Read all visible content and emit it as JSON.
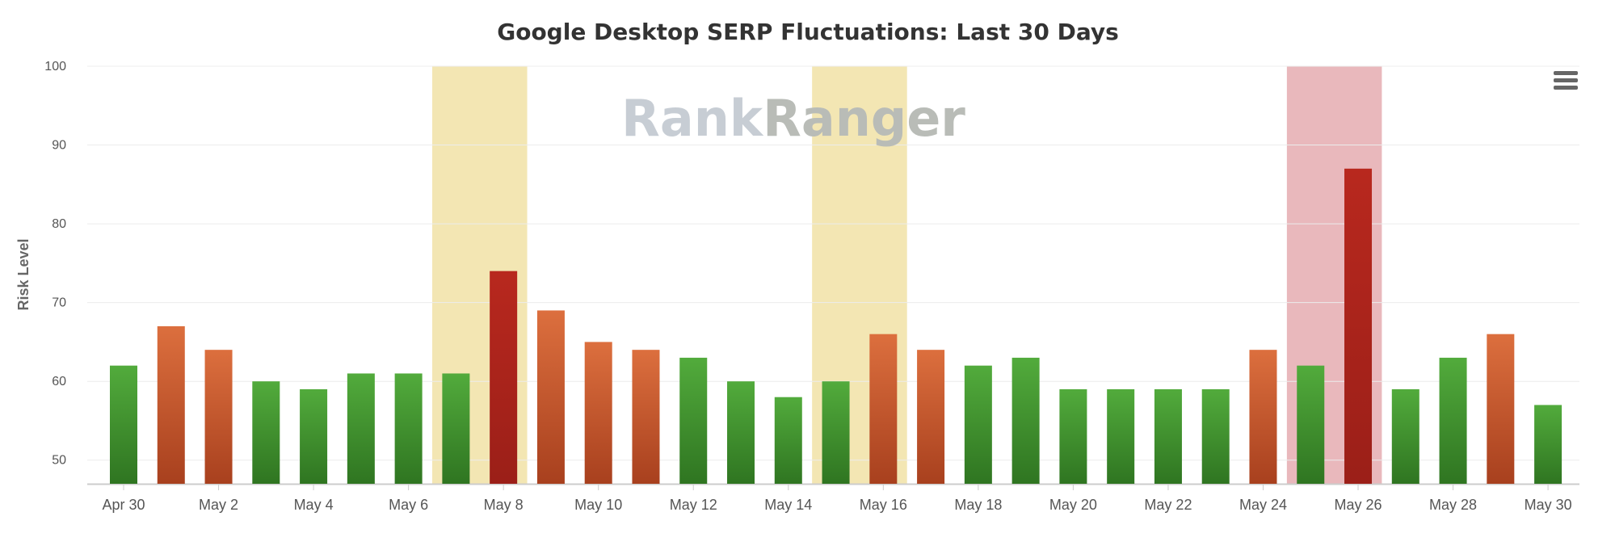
{
  "chart_data": {
    "type": "bar",
    "title": "Google Desktop SERP Fluctuations: Last 30 Days",
    "ylabel": "Risk Level",
    "xlabel": "",
    "ylim": [
      47,
      100
    ],
    "yticks": [
      50,
      60,
      70,
      80,
      90,
      100
    ],
    "grid": true,
    "legend": "none",
    "watermark": {
      "part1": "Rank",
      "part2": "Ranger"
    },
    "categories": [
      "Apr 30",
      "May 1",
      "May 2",
      "May 3",
      "May 4",
      "May 5",
      "May 6",
      "May 7",
      "May 8",
      "May 9",
      "May 10",
      "May 11",
      "May 12",
      "May 13",
      "May 14",
      "May 15",
      "May 16",
      "May 17",
      "May 18",
      "May 19",
      "May 20",
      "May 21",
      "May 22",
      "May 23",
      "May 24",
      "May 25",
      "May 26",
      "May 27",
      "May 28",
      "May 29",
      "May 30"
    ],
    "xtick_labels": [
      "Apr 30",
      "May 2",
      "May 4",
      "May 6",
      "May 8",
      "May 10",
      "May 12",
      "May 14",
      "May 16",
      "May 18",
      "May 20",
      "May 22",
      "May 24",
      "May 26",
      "May 28",
      "May 30"
    ],
    "values": [
      62,
      67,
      64,
      60,
      59,
      61,
      61,
      61,
      74,
      69,
      65,
      64,
      63,
      60,
      58,
      60,
      66,
      64,
      62,
      63,
      59,
      59,
      59,
      59,
      64,
      62,
      87,
      59,
      63,
      66,
      57
    ],
    "risk_levels": [
      "low",
      "medium",
      "medium",
      "low",
      "low",
      "low",
      "low",
      "low",
      "high",
      "medium",
      "medium",
      "medium",
      "low",
      "low",
      "low",
      "low",
      "medium",
      "medium",
      "low",
      "low",
      "low",
      "low",
      "low",
      "low",
      "medium",
      "low",
      "high",
      "low",
      "low",
      "medium",
      "low"
    ],
    "highlight_bands": [
      {
        "from": "May 7",
        "to": "May 8",
        "color": "#f3e6b3"
      },
      {
        "from": "May 15",
        "to": "May 16",
        "color": "#f3e6b3"
      },
      {
        "from": "May 25",
        "to": "May 26",
        "color": "#e9b8bc"
      }
    ],
    "colors": {
      "low": [
        "#52ab3c",
        "#2f7521"
      ],
      "medium": [
        "#dc6f3e",
        "#a8401e"
      ],
      "high": [
        "#b8281e",
        "#9b1f18"
      ],
      "grid": "#ececec",
      "axis": "#cccccc"
    }
  },
  "toolbar": {
    "menu_icon": "hamburger-menu-icon"
  }
}
